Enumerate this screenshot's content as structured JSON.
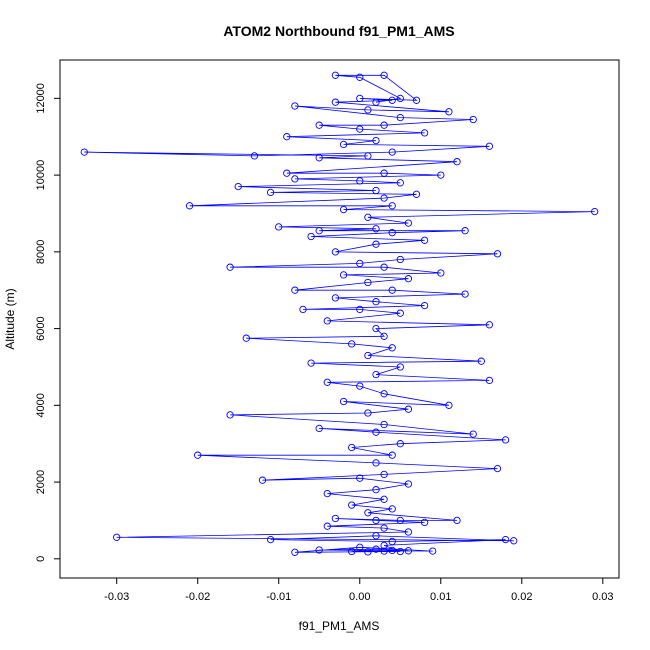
{
  "chart_data": {
    "type": "line",
    "title": "ATOM2 Northbound f91_PM1_AMS",
    "xlabel": "f91_PM1_AMS",
    "ylabel": "Altitude (m)",
    "xlim": [
      -0.037,
      0.032
    ],
    "ylim": [
      -500,
      13000
    ],
    "x_ticks": [
      -0.03,
      -0.02,
      -0.01,
      0.0,
      0.01,
      0.02,
      0.03
    ],
    "x_tick_labels": [
      "-0.03",
      "-0.02",
      "-0.01",
      "0.00",
      "0.01",
      "0.02",
      "0.03"
    ],
    "y_ticks": [
      0,
      2000,
      4000,
      6000,
      8000,
      10000,
      12000
    ],
    "y_tick_labels": [
      "0",
      "2000",
      "4000",
      "6000",
      "8000",
      "10000",
      "12000"
    ],
    "grid": false,
    "legend": "none",
    "series_color": "#0000ff",
    "marker": "open-circle",
    "series": [
      {
        "points": [
          [
            0.003,
            200
          ],
          [
            0.001,
            180
          ],
          [
            0.004,
            220
          ],
          [
            -0.001,
            190
          ],
          [
            0.006,
            210
          ],
          [
            0.002,
            250
          ],
          [
            -0.005,
            230
          ],
          [
            0.009,
            200
          ],
          [
            0.0,
            300
          ],
          [
            -0.008,
            170
          ],
          [
            0.005,
            190
          ],
          [
            0.003,
            350
          ],
          [
            0.018,
            500
          ],
          [
            0.004,
            450
          ],
          [
            -0.011,
            500
          ],
          [
            0.002,
            600
          ],
          [
            0.019,
            470
          ],
          [
            -0.03,
            560
          ],
          [
            0.006,
            700
          ],
          [
            0.003,
            800
          ],
          [
            -0.004,
            850
          ],
          [
            0.008,
            950
          ],
          [
            0.002,
            1000
          ],
          [
            -0.003,
            1050
          ],
          [
            0.005,
            1000
          ],
          [
            0.012,
            1000
          ],
          [
            0.001,
            1200
          ],
          [
            0.004,
            1300
          ],
          [
            -0.001,
            1400
          ],
          [
            0.003,
            1550
          ],
          [
            -0.004,
            1700
          ],
          [
            0.002,
            1800
          ],
          [
            0.006,
            1950
          ],
          [
            0.0,
            2100
          ],
          [
            -0.012,
            2050
          ],
          [
            0.003,
            2200
          ],
          [
            0.017,
            2350
          ],
          [
            0.002,
            2500
          ],
          [
            -0.02,
            2700
          ],
          [
            0.004,
            2700
          ],
          [
            -0.001,
            2900
          ],
          [
            0.005,
            3000
          ],
          [
            0.018,
            3100
          ],
          [
            0.002,
            3300
          ],
          [
            -0.005,
            3400
          ],
          [
            0.014,
            3250
          ],
          [
            0.003,
            3500
          ],
          [
            -0.016,
            3750
          ],
          [
            0.001,
            3800
          ],
          [
            0.006,
            3900
          ],
          [
            -0.002,
            4100
          ],
          [
            0.011,
            4000
          ],
          [
            0.003,
            4300
          ],
          [
            0.0,
            4500
          ],
          [
            -0.004,
            4600
          ],
          [
            0.016,
            4650
          ],
          [
            0.002,
            4800
          ],
          [
            0.005,
            5000
          ],
          [
            -0.006,
            5100
          ],
          [
            0.015,
            5150
          ],
          [
            0.001,
            5300
          ],
          [
            0.004,
            5500
          ],
          [
            -0.001,
            5600
          ],
          [
            -0.014,
            5750
          ],
          [
            0.003,
            5800
          ],
          [
            0.002,
            6000
          ],
          [
            0.016,
            6100
          ],
          [
            -0.004,
            6200
          ],
          [
            0.005,
            6400
          ],
          [
            0.0,
            6500
          ],
          [
            -0.007,
            6500
          ],
          [
            0.008,
            6600
          ],
          [
            0.002,
            6700
          ],
          [
            -0.003,
            6800
          ],
          [
            0.013,
            6900
          ],
          [
            0.004,
            7000
          ],
          [
            -0.008,
            7000
          ],
          [
            0.001,
            7200
          ],
          [
            0.006,
            7300
          ],
          [
            -0.002,
            7400
          ],
          [
            0.01,
            7450
          ],
          [
            0.003,
            7600
          ],
          [
            -0.016,
            7600
          ],
          [
            0.0,
            7700
          ],
          [
            0.005,
            7800
          ],
          [
            0.017,
            7950
          ],
          [
            -0.003,
            8000
          ],
          [
            0.002,
            8200
          ],
          [
            0.008,
            8300
          ],
          [
            -0.006,
            8400
          ],
          [
            0.004,
            8500
          ],
          [
            0.013,
            8550
          ],
          [
            -0.005,
            8550
          ],
          [
            0.002,
            8600
          ],
          [
            -0.01,
            8650
          ],
          [
            0.006,
            8750
          ],
          [
            0.001,
            8900
          ],
          [
            0.029,
            9050
          ],
          [
            -0.002,
            9100
          ],
          [
            0.004,
            9200
          ],
          [
            -0.021,
            9200
          ],
          [
            0.003,
            9400
          ],
          [
            0.007,
            9500
          ],
          [
            -0.011,
            9550
          ],
          [
            0.002,
            9600
          ],
          [
            -0.015,
            9700
          ],
          [
            0.005,
            9800
          ],
          [
            0.0,
            9850
          ],
          [
            -0.008,
            9900
          ],
          [
            0.01,
            10000
          ],
          [
            0.003,
            10050
          ],
          [
            -0.009,
            10050
          ],
          [
            0.012,
            10350
          ],
          [
            -0.005,
            10450
          ],
          [
            0.001,
            10500
          ],
          [
            -0.034,
            10600
          ],
          [
            -0.013,
            10500
          ],
          [
            0.004,
            10600
          ],
          [
            0.016,
            10750
          ],
          [
            -0.002,
            10800
          ],
          [
            0.002,
            10900
          ],
          [
            -0.009,
            11000
          ],
          [
            0.008,
            11100
          ],
          [
            0.0,
            11200
          ],
          [
            -0.005,
            11300
          ],
          [
            0.003,
            11300
          ],
          [
            0.014,
            11450
          ],
          [
            0.005,
            11500
          ],
          [
            -0.008,
            11800
          ],
          [
            0.001,
            11700
          ],
          [
            0.011,
            11650
          ],
          [
            -0.003,
            11900
          ],
          [
            0.004,
            11950
          ],
          [
            0.0,
            12000
          ],
          [
            0.007,
            11950
          ],
          [
            0.003,
            12600
          ],
          [
            -0.003,
            12600
          ],
          [
            0.0,
            12550
          ],
          [
            0.005,
            12000
          ],
          [
            0.002,
            11900
          ]
        ]
      }
    ]
  }
}
